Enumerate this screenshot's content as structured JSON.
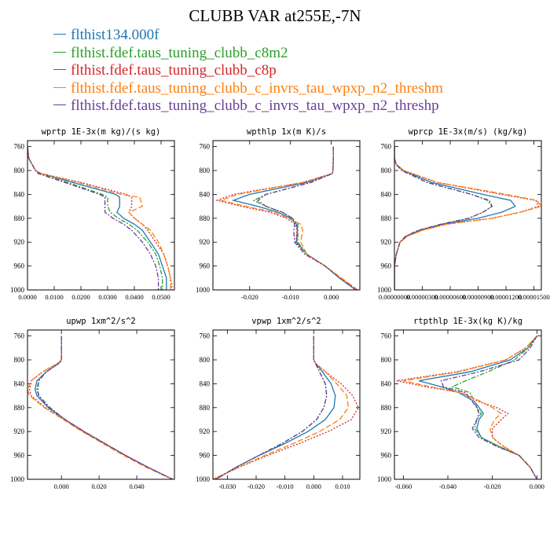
{
  "page": {
    "title": "CLUBB VAR at255E,-7N"
  },
  "legend": [
    {
      "label": "flthist134.000f",
      "color": "#1f77b4",
      "dash": ""
    },
    {
      "label": "flthist.fdef.taus_tuning_clubb_c8m2",
      "color": "#2ca02c",
      "dash": "6,2,2,2"
    },
    {
      "label": "flthist.fdef.taus_tuning_clubb_c8p",
      "color": "#d62728",
      "dash": "2,2"
    },
    {
      "label": "flthist.fdef.taus_tuning_clubb_c_invrs_tau_wpxp_n2_threshm",
      "color": "#ff7f0e",
      "dash": "7,3"
    },
    {
      "label": "flthist.fdef.taus_tuning_clubb_c_invrs_tau_wpxp_n2_threshp",
      "color": "#6a3d9a",
      "dash": "6,2,2,2"
    }
  ],
  "chart_data": [
    {
      "type": "line",
      "title": "wprtp  1E-3x(m kg)/(s kg)",
      "xlim": [
        0,
        0.055
      ],
      "ylim": [
        1000,
        750
      ],
      "xticks": [
        "0.0000",
        "0.0100",
        "0.0200",
        "0.0300",
        "0.0400",
        "0.0500"
      ],
      "xtickvals": [
        0,
        0.01,
        0.02,
        0.03,
        0.04,
        0.05
      ],
      "yticks": [
        "760",
        "800",
        "840",
        "880",
        "920",
        "960",
        "1000"
      ],
      "y": [
        760,
        780,
        800,
        805,
        820,
        840,
        845,
        860,
        870,
        880,
        890,
        900,
        920,
        940,
        960,
        980,
        990,
        1000
      ],
      "series": [
        {
          "values": [
            0,
            0.0005,
            0.003,
            0.005,
            0.017,
            0.033,
            0.0345,
            0.0345,
            0.0335,
            0.036,
            0.04,
            0.043,
            0.046,
            0.049,
            0.0505,
            0.052,
            0.052,
            0.052
          ]
        },
        {
          "values": [
            0,
            0.0005,
            0.003,
            0.004,
            0.015,
            0.028,
            0.03,
            0.03,
            0.031,
            0.034,
            0.038,
            0.041,
            0.045,
            0.048,
            0.0495,
            0.0505,
            0.0505,
            0.0505
          ]
        },
        {
          "values": [
            0,
            0.0005,
            0.003,
            0.005,
            0.02,
            0.037,
            0.039,
            0.039,
            0.038,
            0.04,
            0.043,
            0.045,
            0.048,
            0.051,
            0.0525,
            0.0535,
            0.054,
            0.054
          ]
        },
        {
          "values": [
            0,
            0.0005,
            0.003,
            0.005,
            0.019,
            0.035,
            0.042,
            0.043,
            0.038,
            0.04,
            0.043,
            0.046,
            0.049,
            0.051,
            0.0525,
            0.0535,
            0.0535,
            0.0535
          ]
        },
        {
          "values": [
            0,
            0.0005,
            0.003,
            0.004,
            0.014,
            0.027,
            0.029,
            0.029,
            0.029,
            0.032,
            0.036,
            0.039,
            0.043,
            0.046,
            0.048,
            0.049,
            0.049,
            0.049
          ]
        }
      ]
    },
    {
      "type": "line",
      "title": "wpthlp  1x(m K)/s",
      "xlim": [
        -0.029,
        0.007
      ],
      "ylim": [
        1000,
        750
      ],
      "xticks": [
        "-0.020",
        "-0.010",
        "0.000"
      ],
      "xtickvals": [
        -0.02,
        -0.01,
        0
      ],
      "yticks": [
        "760",
        "800",
        "840",
        "880",
        "920",
        "960",
        "1000"
      ],
      "y": [
        760,
        780,
        800,
        805,
        820,
        840,
        850,
        860,
        870,
        880,
        890,
        900,
        920,
        940,
        960,
        980,
        1000
      ],
      "series": [
        {
          "values": [
            0.0005,
            0.0005,
            0.0004,
            0.0003,
            -0.006,
            -0.02,
            -0.024,
            -0.018,
            -0.013,
            -0.01,
            -0.0085,
            -0.0083,
            -0.0085,
            -0.006,
            -0.0015,
            0.002,
            0.006
          ]
        },
        {
          "values": [
            0.0005,
            0.0005,
            0.0004,
            0.0003,
            -0.005,
            -0.016,
            -0.019,
            -0.016,
            -0.012,
            -0.0095,
            -0.0082,
            -0.0082,
            -0.0082,
            -0.006,
            -0.0015,
            0.002,
            0.006
          ]
        },
        {
          "values": [
            0.0005,
            0.0005,
            0.0004,
            0.0003,
            -0.007,
            -0.024,
            -0.028,
            -0.022,
            -0.015,
            -0.011,
            -0.0088,
            -0.0084,
            -0.0087,
            -0.0065,
            -0.0015,
            0.002,
            0.0065
          ]
        },
        {
          "values": [
            0.0005,
            0.0005,
            0.0004,
            0.0003,
            -0.007,
            -0.023,
            -0.027,
            -0.021,
            -0.014,
            -0.0105,
            -0.0075,
            -0.007,
            -0.0075,
            -0.006,
            -0.0015,
            0.0025,
            0.0065
          ]
        },
        {
          "values": [
            0.0005,
            0.0005,
            0.0004,
            0.0003,
            -0.005,
            -0.016,
            -0.018,
            -0.016,
            -0.012,
            -0.0095,
            -0.009,
            -0.0092,
            -0.009,
            -0.0065,
            -0.0015,
            0.002,
            0.006
          ]
        }
      ]
    },
    {
      "type": "line",
      "title": "wprcp  1E-3x(m/s) (kg/kg)",
      "xlim": [
        0,
        1.58e-05
      ],
      "ylim": [
        1000,
        750
      ],
      "xticks": [
        "0.00000000",
        "0.00000300",
        "0.00000600",
        "0.00000900",
        "0.00001200",
        "0.00001500"
      ],
      "xtickvals": [
        0,
        3e-06,
        6e-06,
        9e-06,
        1.2e-05,
        1.5e-05
      ],
      "yticks": [
        "760",
        "800",
        "840",
        "880",
        "920",
        "960",
        "1000"
      ],
      "y": [
        760,
        780,
        790,
        800,
        820,
        840,
        850,
        860,
        870,
        880,
        890,
        900,
        910,
        920,
        940,
        960,
        980,
        1000
      ],
      "series": [
        {
          "values": [
            0,
            0,
            2e-07,
            9e-07,
            4e-06,
            9.5e-06,
            1.25e-05,
            1.3e-05,
            1.15e-05,
            9e-06,
            5.2e-06,
            2.8e-06,
            1.3e-06,
            6e-07,
            2e-07,
            0,
            0,
            0
          ]
        },
        {
          "values": [
            0,
            0,
            2e-07,
            8e-07,
            3.5e-06,
            8.3e-06,
            1e-05,
            1.05e-05,
            9.5e-06,
            8e-06,
            5e-06,
            2.6e-06,
            1.2e-06,
            6e-07,
            2e-07,
            0,
            0,
            0
          ]
        },
        {
          "values": [
            0,
            0,
            2e-07,
            1e-06,
            4.6e-06,
            1.15e-05,
            1.52e-05,
            1.55e-05,
            1.35e-05,
            1.05e-05,
            5.6e-06,
            3e-06,
            1.4e-06,
            6e-07,
            2e-07,
            0,
            0,
            0
          ]
        },
        {
          "values": [
            0,
            0,
            2e-07,
            1e-06,
            4.6e-06,
            1.2e-05,
            1.53e-05,
            1.58e-05,
            1.35e-05,
            1.05e-05,
            5.6e-06,
            3e-06,
            1.4e-06,
            6e-07,
            2e-07,
            0,
            0,
            0
          ]
        },
        {
          "values": [
            0,
            0,
            2e-07,
            8e-07,
            3.5e-06,
            8.3e-06,
            1.02e-05,
            1.05e-05,
            9.5e-06,
            8e-06,
            5e-06,
            2.6e-06,
            1.2e-06,
            6e-07,
            2e-07,
            0,
            0,
            0
          ]
        }
      ]
    },
    {
      "type": "line",
      "title": "upwp  1xm^2/s^2",
      "xlim": [
        -0.018,
        0.06
      ],
      "ylim": [
        1000,
        750
      ],
      "xticks": [
        "0.000",
        "0.020",
        "0.040"
      ],
      "xtickvals": [
        0,
        0.02,
        0.04
      ],
      "yticks": [
        "760",
        "800",
        "840",
        "880",
        "920",
        "960",
        "1000"
      ],
      "y": [
        760,
        780,
        800,
        805,
        820,
        835,
        850,
        860,
        880,
        900,
        920,
        940,
        960,
        980,
        1000
      ],
      "series": [
        {
          "values": [
            0,
            0,
            0,
            -0.001,
            -0.008,
            -0.013,
            -0.014,
            -0.013,
            -0.007,
            0.002,
            0.012,
            0.023,
            0.034,
            0.046,
            0.059
          ]
        },
        {
          "values": [
            0,
            0,
            0,
            -0.001,
            -0.008,
            -0.012,
            -0.0125,
            -0.012,
            -0.006,
            0.002,
            0.012,
            0.023,
            0.034,
            0.046,
            0.059
          ]
        },
        {
          "values": [
            0,
            0,
            0,
            -0.0015,
            -0.01,
            -0.016,
            -0.017,
            -0.016,
            -0.0085,
            0.0015,
            0.0115,
            0.0225,
            0.034,
            0.046,
            0.059
          ]
        },
        {
          "values": [
            0,
            0,
            0,
            -0.0015,
            -0.01,
            -0.016,
            -0.018,
            -0.017,
            -0.009,
            0.001,
            0.011,
            0.022,
            0.033,
            0.045,
            0.059
          ]
        },
        {
          "values": [
            0,
            0,
            0,
            -0.001,
            -0.008,
            -0.012,
            -0.013,
            -0.012,
            -0.0065,
            0.002,
            0.012,
            0.023,
            0.034,
            0.046,
            0.059
          ]
        }
      ]
    },
    {
      "type": "line",
      "title": "vpwp  1xm^2/s^2",
      "xlim": [
        -0.035,
        0.016
      ],
      "ylim": [
        1000,
        750
      ],
      "xticks": [
        "-0.030",
        "-0.020",
        "-0.010",
        "0.000",
        "0.010"
      ],
      "xtickvals": [
        -0.03,
        -0.02,
        -0.01,
        0,
        0.01
      ],
      "yticks": [
        "760",
        "800",
        "840",
        "880",
        "920",
        "960",
        "1000"
      ],
      "y": [
        760,
        780,
        800,
        805,
        820,
        840,
        860,
        880,
        900,
        920,
        940,
        960,
        980,
        1000
      ],
      "series": [
        {
          "values": [
            0,
            0,
            0,
            0.0005,
            0.003,
            0.006,
            0.0075,
            0.007,
            0.004,
            -0.002,
            -0.01,
            -0.019,
            -0.027,
            -0.034
          ]
        },
        {
          "values": [
            0,
            0,
            0,
            0.0005,
            0.002,
            0.004,
            0.0045,
            0.0035,
            0.001,
            -0.004,
            -0.011,
            -0.019,
            -0.027,
            -0.034
          ]
        },
        {
          "values": [
            0,
            0,
            0,
            0.0005,
            0.004,
            0.0095,
            0.0135,
            0.0155,
            0.013,
            0.005,
            -0.005,
            -0.016,
            -0.026,
            -0.035
          ]
        },
        {
          "values": [
            0,
            0,
            0,
            0.0005,
            0.004,
            0.008,
            0.0115,
            0.012,
            0.009,
            0.002,
            -0.007,
            -0.017,
            -0.026,
            -0.035
          ]
        },
        {
          "values": [
            0,
            0,
            0,
            0.0005,
            0.002,
            0.004,
            0.0045,
            0.0035,
            0.001,
            -0.004,
            -0.011,
            -0.019,
            -0.027,
            -0.034
          ]
        }
      ]
    },
    {
      "type": "line",
      "title": "rtpthlp  1E-3x(kg K)/kg",
      "xlim": [
        -0.064,
        0.002
      ],
      "ylim": [
        1000,
        750
      ],
      "xticks": [
        "-0.060",
        "-0.040",
        "-0.020",
        "0.000"
      ],
      "xtickvals": [
        -0.06,
        -0.04,
        -0.02,
        0
      ],
      "yticks": [
        "760",
        "800",
        "840",
        "880",
        "920",
        "960",
        "1000"
      ],
      "y": [
        760,
        780,
        800,
        820,
        835,
        845,
        855,
        870,
        880,
        890,
        900,
        915,
        930,
        945,
        960,
        980,
        1000
      ],
      "series": [
        {
          "values": [
            0,
            -0.004,
            -0.012,
            -0.03,
            -0.053,
            -0.043,
            -0.035,
            -0.028,
            -0.026,
            -0.024,
            -0.026,
            -0.027,
            -0.025,
            -0.017,
            -0.008,
            -0.003,
            0
          ]
        },
        {
          "values": [
            0,
            -0.004,
            -0.01,
            -0.022,
            -0.032,
            -0.038,
            -0.03,
            -0.028,
            -0.027,
            -0.025,
            -0.027,
            -0.028,
            -0.025,
            -0.017,
            -0.008,
            -0.003,
            0
          ]
        },
        {
          "values": [
            0,
            -0.005,
            -0.014,
            -0.036,
            -0.063,
            -0.05,
            -0.034,
            -0.026,
            -0.018,
            -0.013,
            -0.016,
            -0.02,
            -0.02,
            -0.015,
            -0.008,
            -0.003,
            0
          ]
        },
        {
          "values": [
            0,
            -0.005,
            -0.014,
            -0.035,
            -0.06,
            -0.048,
            -0.034,
            -0.025,
            -0.02,
            -0.016,
            -0.019,
            -0.021,
            -0.02,
            -0.015,
            -0.008,
            -0.003,
            0
          ]
        },
        {
          "values": [
            0,
            -0.003,
            -0.008,
            -0.026,
            -0.043,
            -0.042,
            -0.032,
            -0.029,
            -0.027,
            -0.026,
            -0.027,
            -0.029,
            -0.026,
            -0.018,
            -0.008,
            -0.003,
            0
          ]
        }
      ]
    }
  ]
}
